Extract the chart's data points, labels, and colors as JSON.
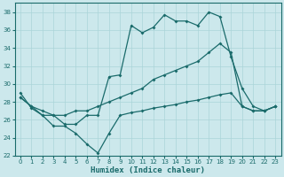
{
  "xlabel": "Humidex (Indice chaleur)",
  "xlim": [
    -0.5,
    23.5
  ],
  "ylim": [
    22,
    39
  ],
  "yticks": [
    22,
    24,
    26,
    28,
    30,
    32,
    34,
    36,
    38
  ],
  "xticks": [
    0,
    1,
    2,
    3,
    4,
    5,
    6,
    7,
    8,
    9,
    10,
    11,
    12,
    13,
    14,
    15,
    16,
    17,
    18,
    19,
    20,
    21,
    22,
    23
  ],
  "bg_color": "#cce8ec",
  "grid_color": "#aad4d8",
  "line_color": "#1a6b6b",
  "line1_x": [
    0,
    1,
    2,
    3,
    4,
    5,
    6,
    7,
    8,
    9,
    10,
    11,
    12,
    13,
    14,
    15,
    16,
    17,
    18,
    19,
    20,
    21,
    22,
    23
  ],
  "line1_y": [
    29.0,
    27.3,
    26.5,
    26.5,
    25.5,
    25.5,
    26.5,
    26.5,
    30.8,
    31.0,
    36.5,
    35.7,
    36.3,
    37.7,
    37.0,
    37.0,
    36.5,
    38.0,
    37.5,
    33.0,
    29.5,
    27.5,
    27.0,
    27.5
  ],
  "line2_x": [
    0,
    1,
    2,
    3,
    4,
    5,
    6,
    7,
    8,
    9,
    10,
    11,
    12,
    13,
    14,
    15,
    16,
    17,
    18,
    19,
    20,
    21,
    22,
    23
  ],
  "line2_y": [
    28.5,
    27.5,
    27.0,
    26.5,
    26.5,
    27.0,
    27.0,
    27.5,
    28.0,
    28.5,
    29.0,
    29.5,
    30.5,
    31.0,
    31.5,
    32.0,
    32.5,
    33.5,
    34.5,
    33.5,
    27.5,
    27.0,
    27.0,
    27.5
  ],
  "line3_x": [
    0,
    1,
    2,
    3,
    4,
    5,
    6,
    7,
    8,
    9,
    10,
    11,
    12,
    13,
    14,
    15,
    16,
    17,
    18,
    19,
    20,
    21,
    22,
    23
  ],
  "line3_y": [
    28.5,
    27.5,
    26.5,
    25.3,
    25.3,
    24.5,
    23.3,
    22.3,
    24.5,
    26.5,
    26.8,
    27.0,
    27.3,
    27.5,
    27.7,
    28.0,
    28.2,
    28.5,
    28.8,
    29.0,
    27.5,
    27.0,
    27.0,
    27.5
  ]
}
